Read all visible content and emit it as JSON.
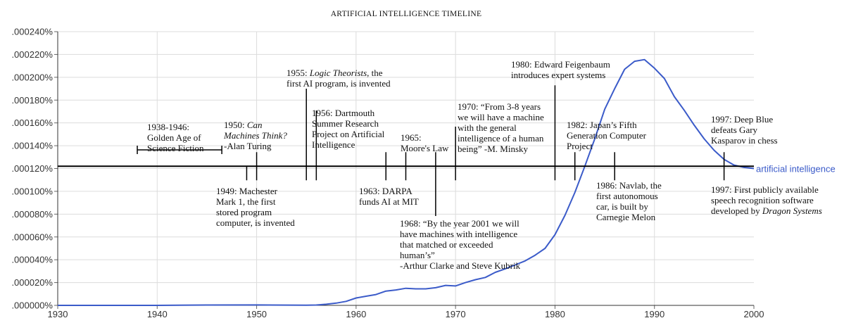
{
  "chart_data": {
    "type": "line",
    "title": "ARTIFICIAL INTELLIGENCE TIMELINE",
    "xlabel": "",
    "ylabel": "",
    "xlim": [
      1930,
      2000
    ],
    "ylim": [
      0,
      0.00024
    ],
    "grid": true,
    "x_ticks": [
      "1930",
      "1940",
      "1950",
      "1960",
      "1970",
      "1980",
      "1990",
      "2000"
    ],
    "y_ticks": [
      ".000000%",
      ".000020%",
      ".000040%",
      ".000060%",
      ".000080%",
      ".000100%",
      ".000120%",
      ".000140%",
      ".000160%",
      ".000180%",
      ".000200%",
      ".000220%",
      ".000240%"
    ],
    "series": [
      {
        "name": "artificial intelligence",
        "color": "#3b5bc9",
        "x": [
          1930,
          1935,
          1940,
          1945,
          1950,
          1955,
          1956,
          1957,
          1958,
          1959,
          1960,
          1961,
          1962,
          1963,
          1964,
          1965,
          1966,
          1967,
          1968,
          1969,
          1970,
          1971,
          1972,
          1973,
          1974,
          1975,
          1976,
          1977,
          1978,
          1979,
          1980,
          1981,
          1982,
          1983,
          1984,
          1985,
          1986,
          1987,
          1988,
          1989,
          1990,
          1991,
          1992,
          1993,
          1994,
          1995,
          1996,
          1997,
          1998,
          1999,
          2000
        ],
        "y": [
          0.0,
          0.0,
          0.0,
          3e-07,
          4e-07,
          2e-07,
          3e-07,
          1e-06,
          2e-06,
          3.5e-06,
          6.5e-06,
          8e-06,
          9.5e-06,
          1.25e-05,
          1.35e-05,
          1.5e-05,
          1.45e-05,
          1.45e-05,
          1.55e-05,
          1.75e-05,
          1.7e-05,
          2e-05,
          2.25e-05,
          2.45e-05,
          2.9e-05,
          3.2e-05,
          3.55e-05,
          3.9e-05,
          4.4e-05,
          5e-05,
          6.2e-05,
          7.9e-05,
          9.9e-05,
          0.000122,
          0.000146,
          0.000172,
          0.00019,
          0.000207,
          0.000214,
          0.0002155,
          0.000208,
          0.000199,
          0.000183,
          0.000171,
          0.000158,
          0.000146,
          0.000136,
          0.000128,
          0.000123,
          0.000121,
          0.00012
        ]
      }
    ],
    "timeline": {
      "y_value": 0.000122,
      "bracket": {
        "from": 1938,
        "to": 1946.5
      },
      "events": [
        {
          "year": 1949,
          "side": "below",
          "lines": [
            "1949: Machester",
            "Mark 1, the first",
            "stored program",
            "computer, is invented"
          ]
        },
        {
          "year": 1950,
          "side": "above",
          "lines": [
            [
              "1950: ",
              {
                "i": "Can"
              }
            ],
            [
              {
                "i": "Machines Think?"
              }
            ],
            [
              "-Alan Turing"
            ]
          ]
        },
        {
          "year": 1955,
          "side": "above",
          "lines": [
            [
              "1955: ",
              {
                "i": "Logic Theorists"
              },
              ", the"
            ],
            [
              "first AI program, is invented"
            ]
          ]
        },
        {
          "year": 1956,
          "side": "above",
          "lines": [
            "1956: Dartmouth",
            "Summer Research",
            "Project on Artificial",
            "Intelligence"
          ]
        },
        {
          "year": 1963,
          "side": "below",
          "lines": [
            "1963: DARPA",
            "funds AI at MIT"
          ]
        },
        {
          "year": 1965,
          "side": "above",
          "lines": [
            "1965:",
            "Moore's Law"
          ]
        },
        {
          "year": 1968,
          "side": "below",
          "lines": [
            "1968: “By the year 2001 we will",
            "have machines with intelligence",
            "that matched or exceeded",
            "human’s”",
            "-Arthur Clarke and Steve Kubrik"
          ]
        },
        {
          "year": 1970,
          "side": "above",
          "lines": [
            "1970: “From 3-8 years",
            "we will have a machine",
            "with the general",
            "intelligence of a human",
            "being” -M. Minsky"
          ]
        },
        {
          "year": 1980,
          "side": "above",
          "lines": [
            "1980: Edward Feigenbaum",
            "introduces expert systems"
          ]
        },
        {
          "year": 1982,
          "side": "above",
          "lines": [
            "1982: Japan’s Fifth",
            "Generation Computer",
            "Project"
          ]
        },
        {
          "year": 1986,
          "side": "below",
          "lines": [
            "1986: Navlab, the",
            "first autonomous",
            "car, is built by",
            "Carnegie Melon"
          ]
        },
        {
          "year": 1997,
          "side": "above",
          "lines": [
            "1997: Deep Blue",
            "defeats Gary",
            "Kasparov in chess"
          ]
        },
        {
          "year": 1997,
          "side": "below",
          "lines": [
            [
              "1997: First publicly available"
            ],
            [
              "speech recognition software"
            ],
            [
              "developed by ",
              {
                "i": "Dragon Systems"
              }
            ]
          ]
        }
      ],
      "bracket_label": [
        "1938-1946:",
        "Golden Age of",
        "Science Fiction"
      ]
    }
  }
}
